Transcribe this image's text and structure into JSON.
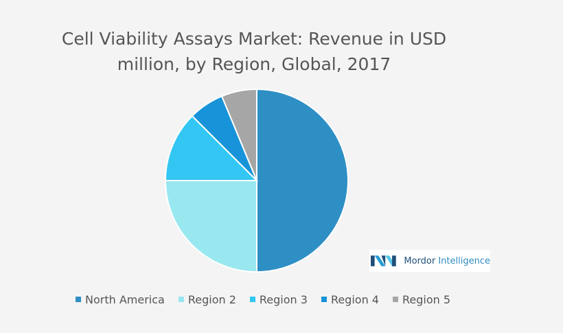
{
  "header": {
    "title_line1": "Cell Viability Assays Market: Revenue in USD",
    "title_line2": "million, by Region, Global, 2017"
  },
  "logo": {
    "brand_bold": "Mordor",
    "brand_light": " Intelligence"
  },
  "chart_data": {
    "type": "pie",
    "title": "Cell Viability Assays Market: Revenue in USD million, by Region, Global, 2017",
    "legend_position": "bottom",
    "slices": [
      {
        "label": "North America",
        "value": 50,
        "color": "#2e8fc4"
      },
      {
        "label": "Region 2",
        "value": 25,
        "color": "#99e8f0"
      },
      {
        "label": "Region 3",
        "value": 12.5,
        "color": "#33c6f2"
      },
      {
        "label": "Region 4",
        "value": 6.25,
        "color": "#1793d9"
      },
      {
        "label": "Region 5",
        "value": 6.25,
        "color": "#a6a6a6"
      }
    ]
  }
}
